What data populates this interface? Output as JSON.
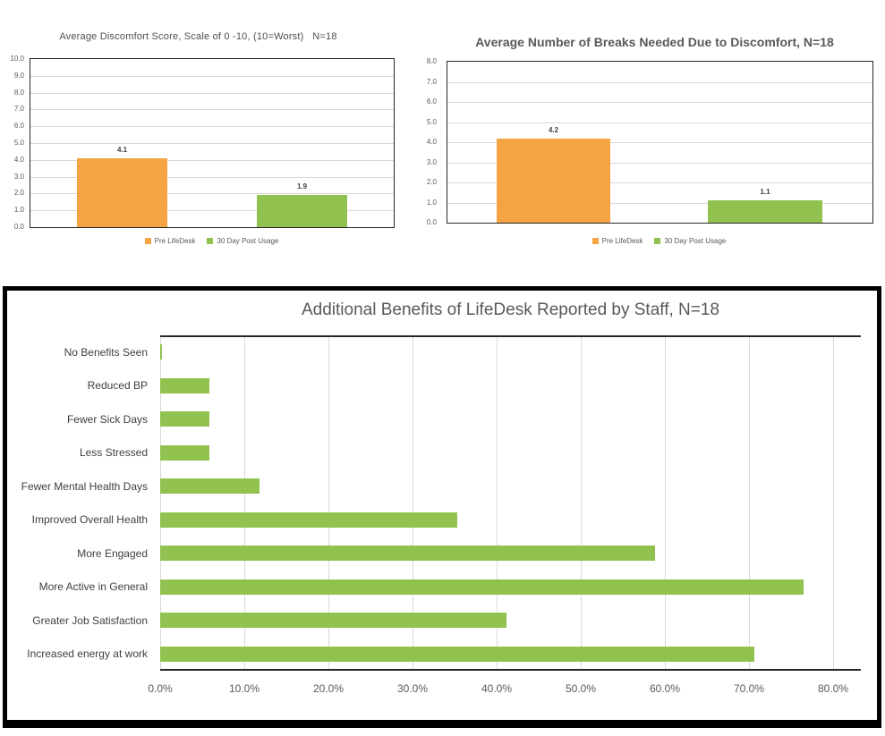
{
  "colors": {
    "orange": "#F4A442",
    "green": "#91C14F",
    "gridline": "#D9D9D9",
    "axis": "#262626",
    "title_text": "#595959",
    "label_text": "#3F3F3F"
  },
  "chart_data": [
    {
      "type": "bar",
      "title": "Average Discomfort Score, Scale of 0 -10, (10=Worst)   N=18",
      "categories": [
        "Pre LifeDesk",
        "30 Day Post Usage"
      ],
      "values": [
        4.1,
        1.9
      ],
      "data_labels": [
        "4.1",
        "1.9"
      ],
      "ylim": [
        0,
        10
      ],
      "ytick_step": 1,
      "grid": "horizontal",
      "legend": [
        "Pre LifeDesk",
        "30 Day Post Usage"
      ],
      "legend_position": "bottom",
      "colors": [
        "#F4A442",
        "#91C14F"
      ]
    },
    {
      "type": "bar",
      "title": "Average Number of Breaks Needed Due to Discomfort, N=18",
      "categories": [
        "Pre LifeDesk",
        "30 Day Post Usage"
      ],
      "values": [
        4.2,
        1.1
      ],
      "data_labels": [
        "4.2",
        "1.1"
      ],
      "ylim": [
        0,
        8
      ],
      "ytick_step": 1,
      "grid": "horizontal",
      "legend": [
        "Pre LifeDesk",
        "30 Day Post Usage"
      ],
      "legend_position": "bottom",
      "colors": [
        "#F4A442",
        "#91C14F"
      ]
    },
    {
      "type": "bar-horizontal",
      "title": "Additional Benefits of LifeDesk Reported by Staff, N=18",
      "categories": [
        "No Benefits Seen",
        "Reduced BP",
        "Fewer Sick Days",
        "Less Stressed",
        "Fewer Mental Health Days",
        "Improved Overall Health",
        "More Engaged",
        "More Active in General",
        "Greater Job Satisfaction",
        "Increased energy at work"
      ],
      "values": [
        0.0,
        5.9,
        5.9,
        5.9,
        11.8,
        35.3,
        58.8,
        76.5,
        41.2,
        70.6
      ],
      "xlim": [
        0,
        83.3
      ],
      "xtick_step": 10,
      "xtick_labels": [
        "0.0%",
        "10.0%",
        "20.0%",
        "30.0%",
        "40.0%",
        "50.0%",
        "60.0%",
        "70.0%",
        "80.0%"
      ],
      "grid": "vertical",
      "bar_color": "#91C14F"
    }
  ]
}
